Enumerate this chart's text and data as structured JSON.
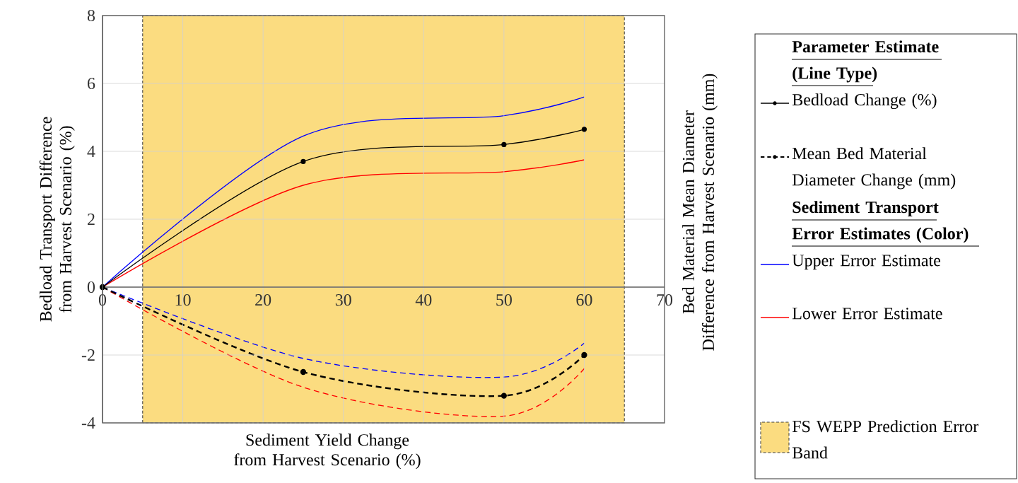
{
  "chart_data": {
    "type": "line",
    "xlabel": "Sediment Yield Change from Harvest Scenario (%)",
    "ylabel": "Bedload Transport Difference from Harvest Scenario (%)",
    "y2label": "Bed Material Mean Diameter Difference from Harvest Scenario (mm)",
    "legend_title": "Parameter Estimate (Line Type)",
    "annotations": [
      "Sediment Transport Error Estimates (Color)"
    ],
    "x": [
      0,
      25,
      50,
      60
    ],
    "series": [
      {
        "name": "Bedload Change (%)",
        "color": "#000000",
        "values": [
          0,
          3.7,
          4.2,
          4.65
        ],
        "line_style": "solid",
        "marker": "circle"
      },
      {
        "name": "Mean Bed Material Diameter Change (mm)",
        "color": "#000000",
        "values": [
          0,
          -2.5,
          -3.2,
          -2.0
        ],
        "line_style": "dashed",
        "marker": "circle"
      },
      {
        "name": "Upper Error Estimate",
        "color": "#0000ff",
        "values": [
          0,
          4.45,
          5.05,
          5.6
        ],
        "line_style": "solid",
        "marker": "none"
      },
      {
        "name": "Lower Error Estimate",
        "color": "#ff0000",
        "values": [
          0,
          3.0,
          3.4,
          3.75
        ],
        "line_style": "solid",
        "marker": "none"
      },
      {
        "color": "#0000ff",
        "values": [
          0,
          -2.1,
          -2.65,
          -1.65
        ],
        "line_style": "dashed",
        "marker": "none"
      },
      {
        "color": "#ff0000",
        "values": [
          0,
          -2.95,
          -3.8,
          -2.4
        ],
        "line_style": "dashed",
        "marker": "none"
      }
    ],
    "bands": [
      {
        "axis": "x",
        "from": 5,
        "to": 65,
        "label": "FS WEPP Prediction Error Band",
        "color": "#fbdc80"
      }
    ],
    "xlim": [
      0,
      70
    ],
    "ylim": [
      -4,
      8
    ],
    "xticks": [
      0,
      10,
      20,
      30,
      40,
      50,
      60,
      70
    ],
    "yticks": [
      -4,
      -2,
      0,
      2,
      4,
      6,
      8
    ],
    "grid": true,
    "legend": "right"
  }
}
